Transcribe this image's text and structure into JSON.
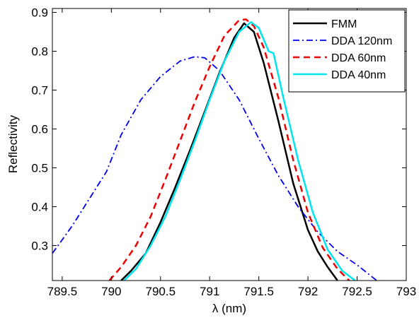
{
  "chart_data": {
    "type": "line",
    "title": "",
    "xlabel": "λ (nm)",
    "ylabel": "Reflectivity",
    "xlim": [
      789.4,
      793.0
    ],
    "ylim": [
      0.21,
      0.91
    ],
    "xticks": [
      789.5,
      790,
      790.5,
      791,
      791.5,
      792,
      792.5,
      793
    ],
    "xtick_labels": [
      "789.5",
      "790",
      "790.5",
      "791",
      "791.5",
      "792",
      "792.5",
      "793"
    ],
    "yticks": [
      0.3,
      0.4,
      0.5,
      0.6,
      0.7,
      0.8,
      0.9
    ],
    "ytick_labels": [
      "0.3",
      "0.4",
      "0.5",
      "0.6",
      "0.7",
      "0.8",
      "0.9"
    ],
    "grid": false,
    "legend_position": "top-right",
    "series": [
      {
        "name": "FMM",
        "color": "#000000",
        "dash": "solid",
        "width": 2.5,
        "x": [
          790.1,
          790.2,
          790.35,
          790.5,
          790.65,
          790.8,
          790.95,
          791.1,
          791.25,
          791.35,
          791.45,
          791.55,
          791.7,
          791.85,
          792.0,
          792.1,
          792.2,
          792.3
        ],
        "y": [
          0.21,
          0.235,
          0.28,
          0.36,
          0.45,
          0.545,
          0.645,
          0.745,
          0.835,
          0.872,
          0.85,
          0.77,
          0.62,
          0.46,
          0.34,
          0.285,
          0.245,
          0.21
        ]
      },
      {
        "name": "DDA 120nm",
        "color": "#0000ee",
        "dash": "dashdot",
        "width": 1.8,
        "x": [
          789.4,
          789.6,
          789.8,
          789.95,
          790.1,
          790.3,
          790.5,
          790.7,
          790.85,
          790.95,
          791.1,
          791.3,
          791.5,
          791.7,
          791.9,
          792.1,
          792.3,
          792.5,
          792.7
        ],
        "y": [
          0.28,
          0.35,
          0.43,
          0.49,
          0.585,
          0.675,
          0.735,
          0.775,
          0.786,
          0.783,
          0.75,
          0.675,
          0.575,
          0.48,
          0.4,
          0.335,
          0.285,
          0.25,
          0.21
        ]
      },
      {
        "name": "DDA 60nm",
        "color": "#ee0000",
        "dash": "dashed",
        "width": 2.5,
        "x": [
          789.98,
          790.1,
          790.25,
          790.4,
          790.55,
          790.7,
          790.85,
          791.0,
          791.15,
          791.3,
          791.37,
          791.45,
          791.55,
          791.7,
          791.85,
          792.0,
          792.15,
          792.3,
          792.42
        ],
        "y": [
          0.21,
          0.245,
          0.3,
          0.375,
          0.47,
          0.57,
          0.67,
          0.76,
          0.84,
          0.88,
          0.882,
          0.865,
          0.81,
          0.68,
          0.52,
          0.385,
          0.295,
          0.24,
          0.21
        ]
      },
      {
        "name": "DDA 40nm",
        "color": "#00e5ee",
        "dash": "solid",
        "width": 2.5,
        "x": [
          790.13,
          790.25,
          790.4,
          790.55,
          790.7,
          790.85,
          791.0,
          791.15,
          791.3,
          791.42,
          791.5,
          791.6,
          791.65,
          791.75,
          791.9,
          792.05,
          792.2,
          792.35,
          792.48
        ],
        "y": [
          0.21,
          0.24,
          0.3,
          0.375,
          0.47,
          0.57,
          0.675,
          0.775,
          0.85,
          0.875,
          0.86,
          0.8,
          0.795,
          0.68,
          0.52,
          0.385,
          0.29,
          0.235,
          0.21
        ]
      }
    ]
  }
}
